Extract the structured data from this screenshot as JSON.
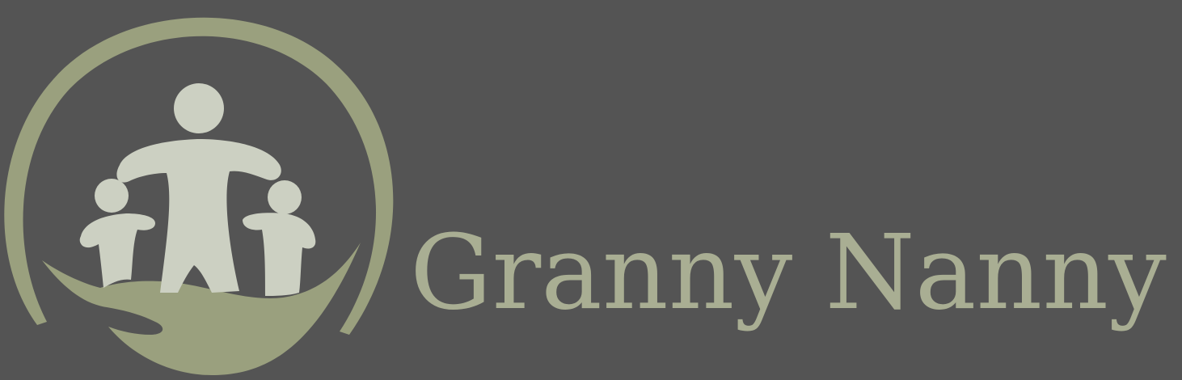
{
  "brand": {
    "name": "Granny Nanny"
  },
  "logo": {
    "icon": "family-in-hand-icon",
    "description_hidden": ""
  },
  "colors": {
    "background": "#545454",
    "ring": "#9aa07e",
    "hand": "#9aa07e",
    "figures": "#ccd0c2",
    "brand_text": "#a9ae93"
  }
}
